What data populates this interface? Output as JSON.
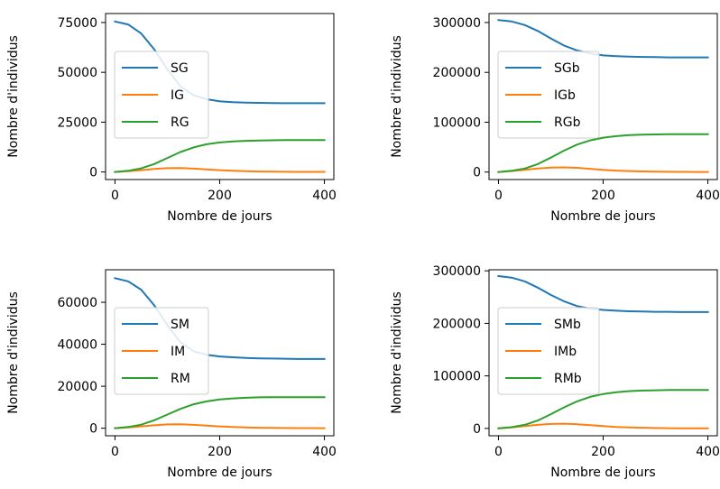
{
  "chart_data": [
    {
      "type": "line",
      "xlabel": "Nombre de jours",
      "ylabel": "Nombre d'individus",
      "xlim": [
        -18,
        418
      ],
      "ylim": [
        -3800,
        79500
      ],
      "xticks": [
        0,
        200,
        400
      ],
      "xtick_labels": [
        "0",
        "200",
        "400"
      ],
      "yticks": [
        0,
        25000,
        50000,
        75000
      ],
      "ytick_labels": [
        "0",
        "25000",
        "50000",
        "75000"
      ],
      "legend": "center-left",
      "series": [
        {
          "name": "SG",
          "color": "#1f77b4",
          "x": [
            0,
            25,
            50,
            75,
            100,
            125,
            150,
            175,
            200,
            225,
            250,
            275,
            300,
            325,
            350,
            375,
            400
          ],
          "y": [
            75500,
            74000,
            69500,
            61500,
            51500,
            43000,
            38500,
            36500,
            35500,
            35000,
            34800,
            34700,
            34600,
            34500,
            34500,
            34500,
            34500
          ]
        },
        {
          "name": "IG",
          "color": "#ff7f0e",
          "x": [
            0,
            25,
            50,
            75,
            100,
            125,
            150,
            175,
            200,
            225,
            250,
            275,
            300,
            325,
            350,
            375,
            400
          ],
          "y": [
            0,
            400,
            900,
            1500,
            1900,
            2000,
            1700,
            1300,
            900,
            600,
            400,
            250,
            150,
            100,
            60,
            40,
            30
          ]
        },
        {
          "name": "RG",
          "color": "#2ca02c",
          "x": [
            0,
            25,
            50,
            75,
            100,
            125,
            150,
            175,
            200,
            225,
            250,
            275,
            300,
            325,
            350,
            375,
            400
          ],
          "y": [
            0,
            600,
            1800,
            4000,
            7000,
            10000,
            12300,
            13900,
            14800,
            15300,
            15600,
            15800,
            15900,
            16000,
            16000,
            16000,
            16000
          ]
        }
      ]
    },
    {
      "type": "line",
      "xlabel": "Nombre de jours",
      "ylabel": "Nombre d'individus",
      "xlim": [
        -18,
        418
      ],
      "ylim": [
        -15000,
        318000
      ],
      "xticks": [
        0,
        200,
        400
      ],
      "xtick_labels": [
        "0",
        "200",
        "400"
      ],
      "yticks": [
        0,
        100000,
        200000,
        300000
      ],
      "ytick_labels": [
        "0",
        "100000",
        "200000",
        "300000"
      ],
      "legend": "center-left",
      "series": [
        {
          "name": "SGb",
          "color": "#1f77b4",
          "x": [
            0,
            25,
            50,
            75,
            100,
            125,
            150,
            175,
            200,
            225,
            250,
            275,
            300,
            325,
            350,
            375,
            400
          ],
          "y": [
            305000,
            302000,
            295000,
            283000,
            268000,
            254000,
            244000,
            238000,
            234000,
            232500,
            231500,
            231000,
            230500,
            230000,
            230000,
            230000,
            230000
          ]
        },
        {
          "name": "IGb",
          "color": "#ff7f0e",
          "x": [
            0,
            25,
            50,
            75,
            100,
            125,
            150,
            175,
            200,
            225,
            250,
            275,
            300,
            325,
            350,
            375,
            400
          ],
          "y": [
            0,
            2000,
            4500,
            7000,
            9000,
            9500,
            8500,
            6500,
            4500,
            3000,
            2000,
            1200,
            800,
            500,
            300,
            200,
            150
          ]
        },
        {
          "name": "RGb",
          "color": "#2ca02c",
          "x": [
            0,
            25,
            50,
            75,
            100,
            125,
            150,
            175,
            200,
            225,
            250,
            275,
            300,
            325,
            350,
            375,
            400
          ],
          "y": [
            0,
            2500,
            7000,
            16000,
            29000,
            43000,
            55000,
            63500,
            69000,
            72000,
            74000,
            75000,
            75500,
            76000,
            76000,
            76000,
            76000
          ]
        }
      ]
    },
    {
      "type": "line",
      "xlabel": "Nombre de jours",
      "ylabel": "Nombre d'individus",
      "xlim": [
        -18,
        418
      ],
      "ylim": [
        -3600,
        75500
      ],
      "xticks": [
        0,
        200,
        400
      ],
      "xtick_labels": [
        "0",
        "200",
        "400"
      ],
      "yticks": [
        0,
        20000,
        40000,
        60000
      ],
      "ytick_labels": [
        "0",
        "20000",
        "40000",
        "60000"
      ],
      "legend": "center-left",
      "series": [
        {
          "name": "SM",
          "color": "#1f77b4",
          "x": [
            0,
            25,
            50,
            75,
            100,
            125,
            150,
            175,
            200,
            225,
            250,
            275,
            300,
            325,
            350,
            375,
            400
          ],
          "y": [
            71500,
            70000,
            66000,
            58500,
            49000,
            41000,
            36700,
            35000,
            34200,
            33800,
            33500,
            33300,
            33200,
            33100,
            33000,
            33000,
            33000
          ]
        },
        {
          "name": "IM",
          "color": "#ff7f0e",
          "x": [
            0,
            25,
            50,
            75,
            100,
            125,
            150,
            175,
            200,
            225,
            250,
            275,
            300,
            325,
            350,
            375,
            400
          ],
          "y": [
            0,
            400,
            850,
            1400,
            1800,
            1900,
            1600,
            1200,
            850,
            550,
            350,
            220,
            140,
            90,
            60,
            40,
            30
          ]
        },
        {
          "name": "RM",
          "color": "#2ca02c",
          "x": [
            0,
            25,
            50,
            75,
            100,
            125,
            150,
            175,
            200,
            225,
            250,
            275,
            300,
            325,
            350,
            375,
            400
          ],
          "y": [
            0,
            550,
            1700,
            3800,
            6500,
            9200,
            11400,
            12800,
            13700,
            14200,
            14500,
            14700,
            14800,
            14800,
            14800,
            14800,
            14800
          ]
        }
      ]
    },
    {
      "type": "line",
      "xlabel": "Nombre de jours",
      "ylabel": "Nombre d'individus",
      "xlim": [
        -18,
        418
      ],
      "ylim": [
        -14000,
        302000
      ],
      "xticks": [
        0,
        200,
        400
      ],
      "xtick_labels": [
        "0",
        "200",
        "400"
      ],
      "yticks": [
        0,
        100000,
        200000,
        300000
      ],
      "ytick_labels": [
        "0",
        "100000",
        "200000",
        "300000"
      ],
      "legend": "center-left",
      "series": [
        {
          "name": "SMb",
          "color": "#1f77b4",
          "x": [
            0,
            25,
            50,
            75,
            100,
            125,
            150,
            175,
            200,
            225,
            250,
            275,
            300,
            325,
            350,
            375,
            400
          ],
          "y": [
            290000,
            287000,
            280000,
            268000,
            254000,
            242000,
            233000,
            228000,
            225500,
            224000,
            223000,
            222500,
            222000,
            222000,
            221500,
            221500,
            221500
          ]
        },
        {
          "name": "IMb",
          "color": "#ff7f0e",
          "x": [
            0,
            25,
            50,
            75,
            100,
            125,
            150,
            175,
            200,
            225,
            250,
            275,
            300,
            325,
            350,
            375,
            400
          ],
          "y": [
            0,
            2000,
            4500,
            6800,
            8500,
            9000,
            8000,
            6200,
            4300,
            2900,
            1900,
            1200,
            750,
            450,
            300,
            200,
            150
          ]
        },
        {
          "name": "RMb",
          "color": "#2ca02c",
          "x": [
            0,
            25,
            50,
            75,
            100,
            125,
            150,
            175,
            200,
            225,
            250,
            275,
            300,
            325,
            350,
            375,
            400
          ],
          "y": [
            0,
            2400,
            6800,
            15000,
            27000,
            40000,
            51500,
            60000,
            65500,
            69000,
            71000,
            72000,
            72500,
            73000,
            73000,
            73000,
            73000
          ]
        }
      ]
    }
  ]
}
